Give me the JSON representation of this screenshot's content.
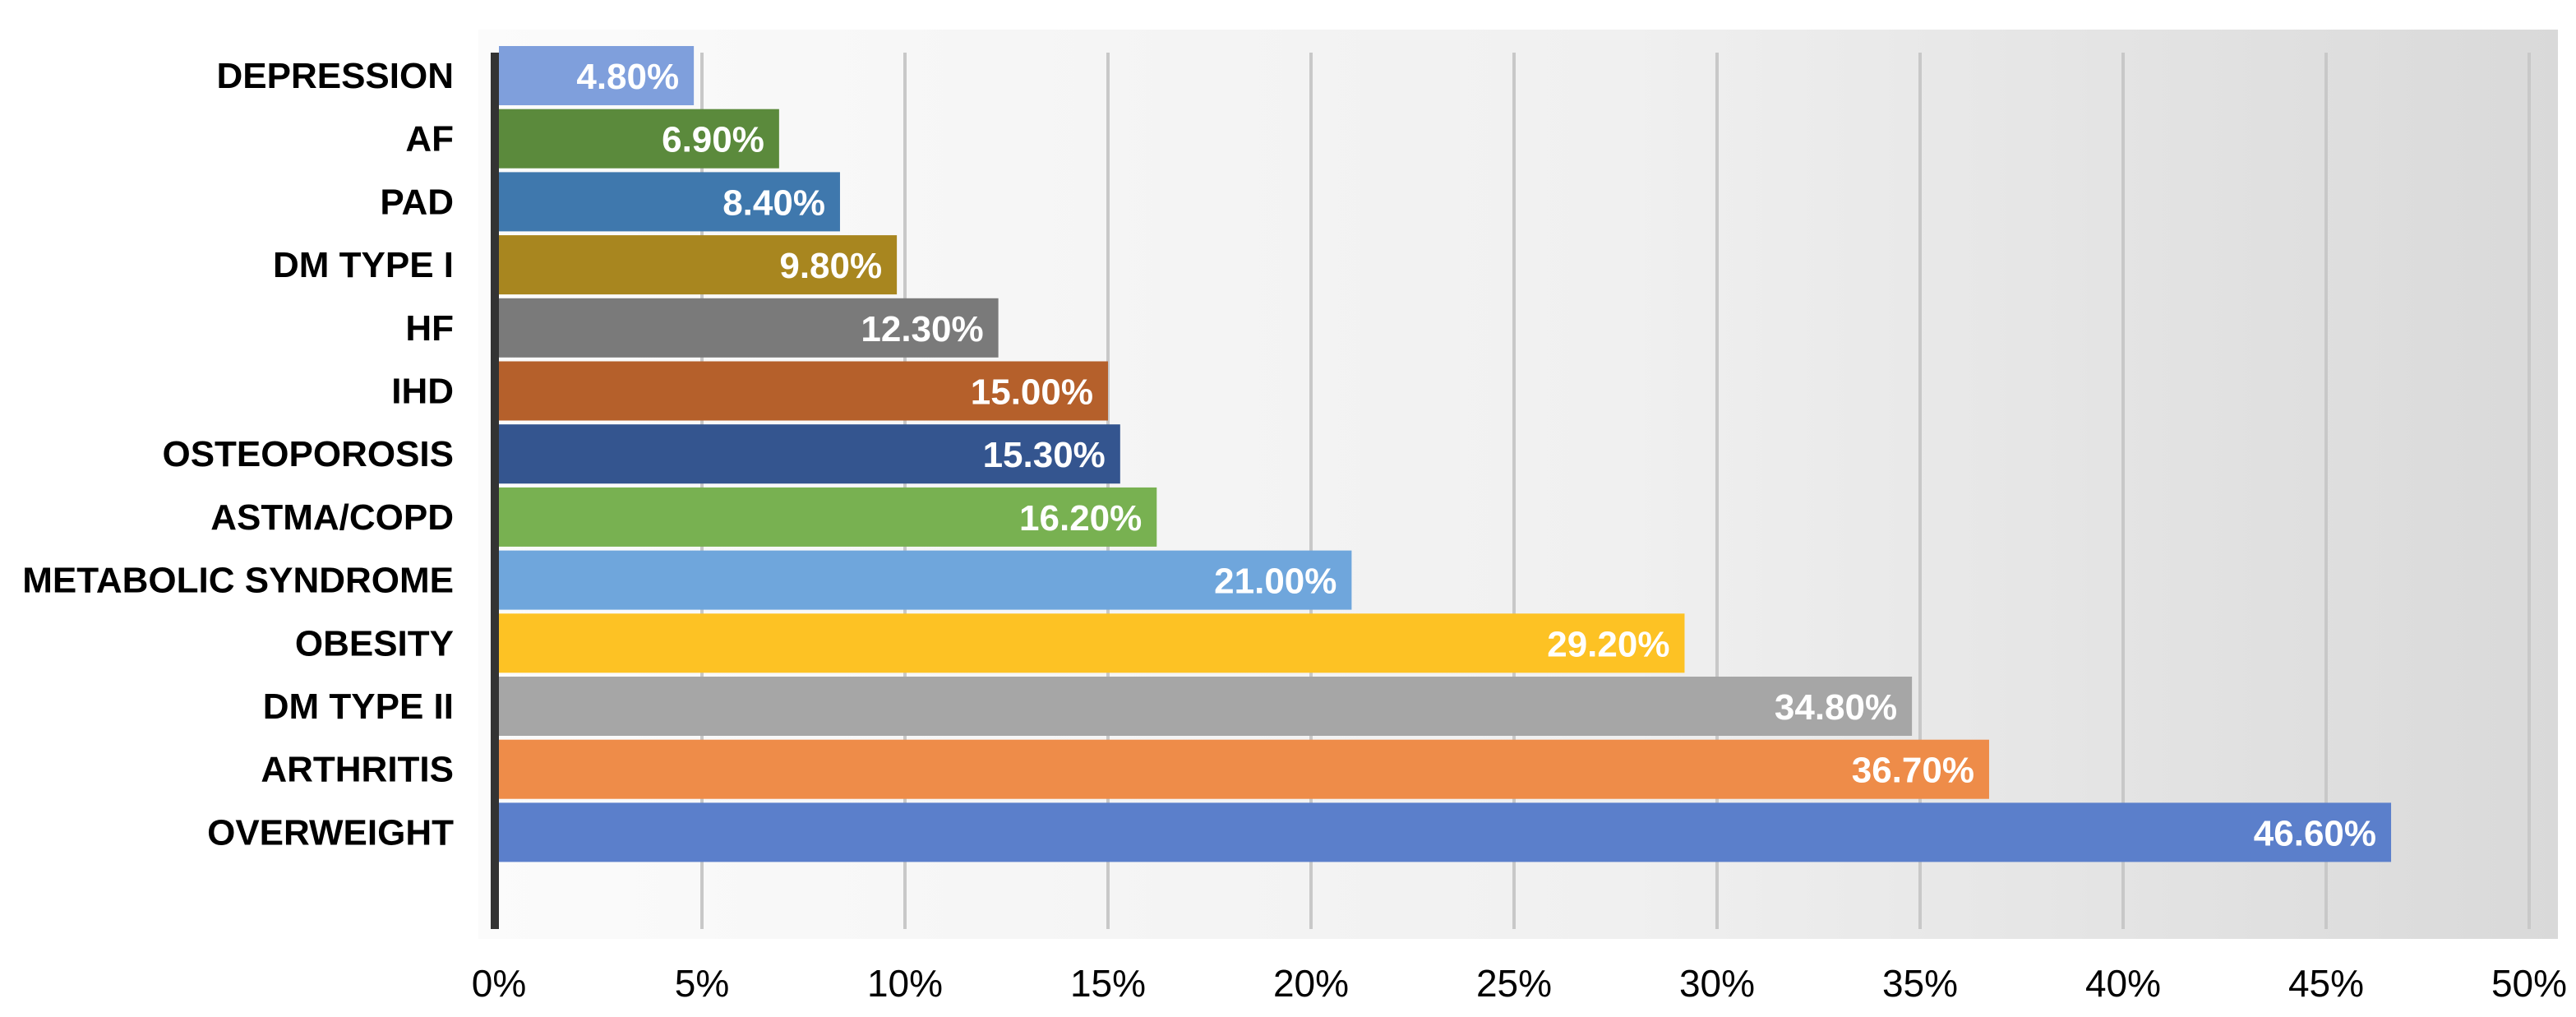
{
  "chart_data": {
    "type": "bar",
    "orientation": "horizontal",
    "categories": [
      "DEPRESSION",
      "AF",
      "PAD",
      "DM TYPE I",
      "HF",
      "IHD",
      "OSTEOPOROSIS",
      "ASTMA/COPD",
      "METABOLIC SYNDROME",
      "OBESITY",
      "DM TYPE II",
      "ARTHRITIS",
      "OVERWEIGHT"
    ],
    "values": [
      4.8,
      6.9,
      8.4,
      9.8,
      12.3,
      15.0,
      15.3,
      16.2,
      21.0,
      29.2,
      34.8,
      36.7,
      46.6
    ],
    "data_labels": [
      "4.80%",
      "6.90%",
      "8.40%",
      "9.80%",
      "12.30%",
      "15.00%",
      "15.30%",
      "16.20%",
      "21.00%",
      "29.20%",
      "34.80%",
      "36.70%",
      "46.60%"
    ],
    "colors": [
      "#7f9fdc",
      "#5b8a3c",
      "#3f78ad",
      "#a8861f",
      "#7a7a7a",
      "#b5602b",
      "#34558f",
      "#78b151",
      "#6fa6dc",
      "#fdc224",
      "#a6a6a6",
      "#ee8c49",
      "#5b7fcb"
    ],
    "xlim": [
      0,
      50
    ],
    "x_ticks": [
      "0%",
      "5%",
      "10%",
      "15%",
      "20%",
      "25%",
      "30%",
      "35%",
      "40%",
      "45%",
      "50%"
    ],
    "grid": "vertical",
    "title": "",
    "xlabel": "",
    "ylabel": ""
  }
}
